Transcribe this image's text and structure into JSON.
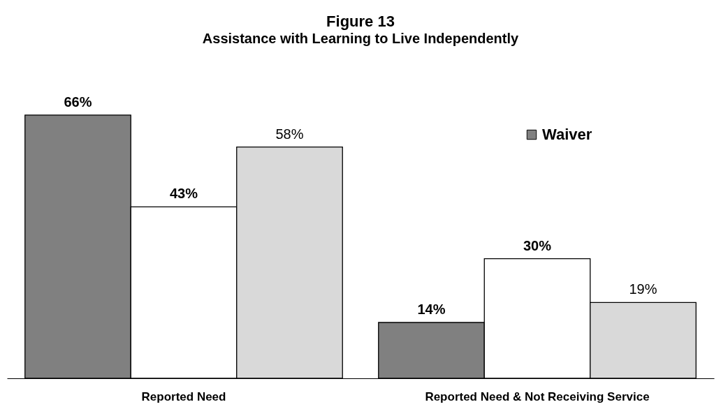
{
  "chart_data": {
    "type": "bar",
    "title": "Figure 13",
    "subtitle": "Assistance with Learning to Live Independently",
    "categories": [
      "Reported Need",
      "Reported Need & Not Receiving Service"
    ],
    "series": [
      {
        "name": "Waiver",
        "color": "#808080",
        "values": [
          66,
          14
        ],
        "value_labels": [
          "66%",
          "14%"
        ]
      },
      {
        "color": "#ffffff",
        "values": [
          43,
          30
        ],
        "value_labels": [
          "43%",
          "30%"
        ]
      },
      {
        "color": "#d9d9d9",
        "values": [
          58,
          19
        ],
        "value_labels": [
          "58%",
          "19%"
        ]
      }
    ],
    "legend": "top right",
    "grid": false
  }
}
